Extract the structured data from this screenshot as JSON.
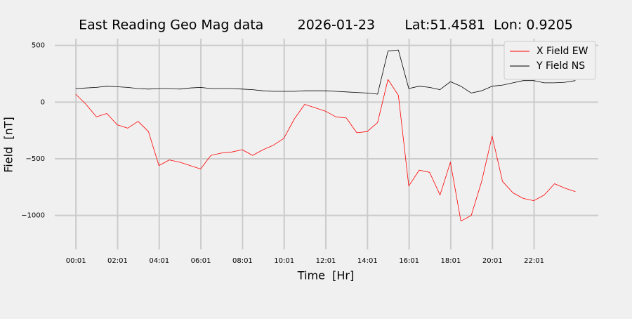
{
  "chart_data": {
    "type": "line",
    "title": "East Reading Geo Mag data        2026-01-23       Lat:51.4581  Lon: 0.9205",
    "x_label": "Time  [Hr]",
    "y_label": "Field  [nT]",
    "x": [
      0,
      0.5,
      1,
      1.5,
      2,
      2.5,
      3,
      3.5,
      4,
      4.5,
      5,
      5.5,
      6,
      6.5,
      7,
      7.5,
      8,
      8.5,
      9,
      9.5,
      10,
      10.5,
      11,
      11.5,
      12,
      12.5,
      13,
      13.5,
      14,
      14.5,
      15,
      15.5,
      16,
      16.5,
      17,
      17.5,
      18,
      18.5,
      19,
      19.5,
      20,
      20.5,
      21,
      21.5,
      22,
      22.5,
      23,
      23.5,
      24
    ],
    "series": [
      {
        "name": "X Field EW",
        "color": "#ff0000",
        "values": [
          70,
          -20,
          -130,
          -100,
          -200,
          -230,
          -170,
          -260,
          -560,
          -510,
          -530,
          -560,
          -590,
          -470,
          -450,
          -440,
          -420,
          -470,
          -420,
          -380,
          -320,
          -150,
          -20,
          -50,
          -80,
          -130,
          -140,
          -270,
          -260,
          -180,
          200,
          60,
          -740,
          -600,
          -620,
          -820,
          -530,
          -1050,
          -1000,
          -700,
          -300,
          -700,
          -800,
          -850,
          -870,
          -820,
          -720,
          -760,
          -790
        ]
      },
      {
        "name": "Y Field NS",
        "color": "#000000",
        "values": [
          120,
          125,
          130,
          140,
          135,
          130,
          120,
          115,
          120,
          120,
          115,
          125,
          130,
          120,
          120,
          120,
          115,
          110,
          100,
          95,
          95,
          95,
          100,
          100,
          100,
          95,
          90,
          85,
          80,
          70,
          450,
          460,
          120,
          140,
          130,
          110,
          180,
          140,
          80,
          100,
          140,
          150,
          170,
          190,
          190,
          170,
          170,
          175,
          190
        ]
      }
    ],
    "xlim": [
      -1,
      25.1
    ],
    "ylim": [
      -1300,
      560
    ],
    "xticks": [
      {
        "value": 0.0167,
        "label": "00:01"
      },
      {
        "value": 2.0167,
        "label": "02:01"
      },
      {
        "value": 4.0167,
        "label": "04:01"
      },
      {
        "value": 6.0167,
        "label": "06:01"
      },
      {
        "value": 8.0167,
        "label": "08:01"
      },
      {
        "value": 10.0167,
        "label": "10:01"
      },
      {
        "value": 12.0167,
        "label": "12:01"
      },
      {
        "value": 14.0167,
        "label": "14:01"
      },
      {
        "value": 16.0167,
        "label": "16:01"
      },
      {
        "value": 18.0167,
        "label": "18:01"
      },
      {
        "value": 20.0167,
        "label": "20:01"
      },
      {
        "value": 22.0167,
        "label": "22:01"
      }
    ],
    "yticks": [
      {
        "value": -1000,
        "label": "−1000"
      },
      {
        "value": -500,
        "label": "−500"
      },
      0,
      500
    ],
    "grid": true,
    "legend": "upper right"
  }
}
